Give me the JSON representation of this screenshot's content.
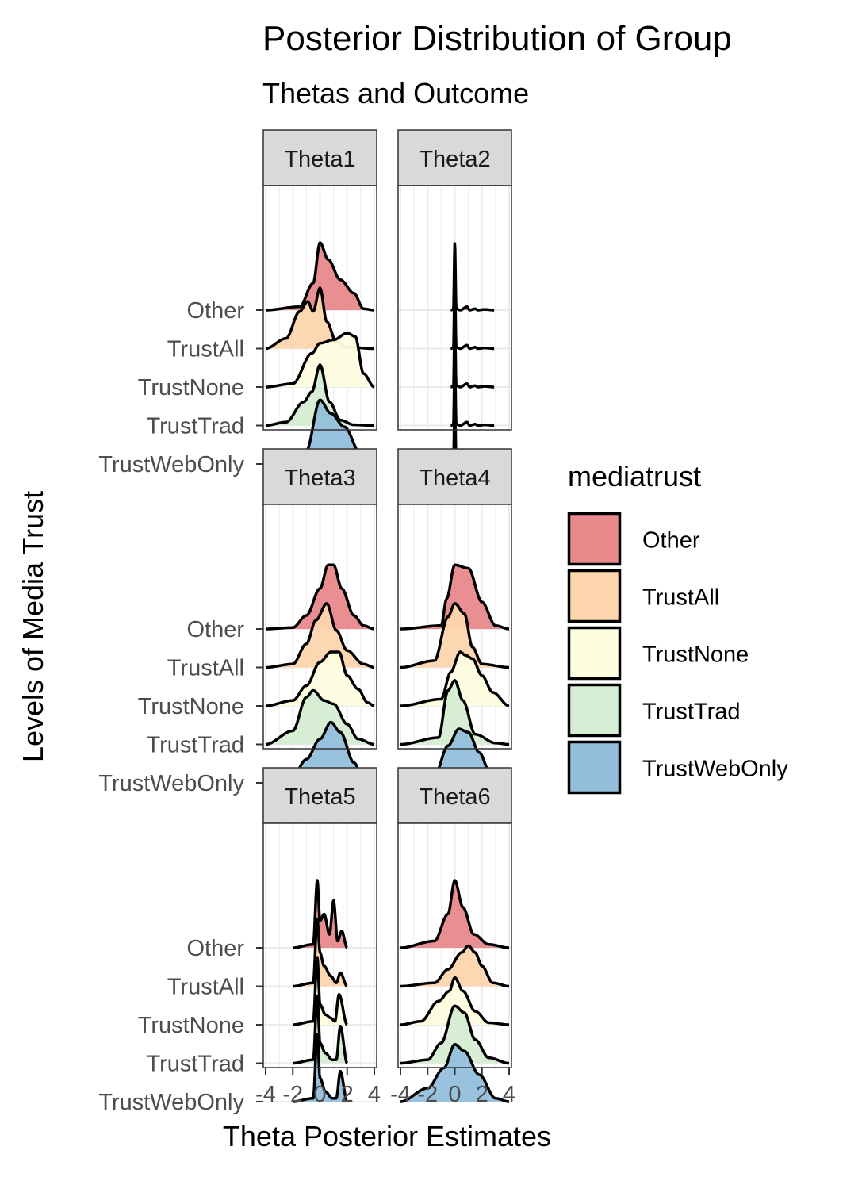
{
  "chart_data": {
    "type": "ridgeline",
    "title": "Posterior Distribution of Group",
    "subtitle": "Thetas and Outcome",
    "xlabel": "Theta Posterior Estimates",
    "ylabel": "Levels of Media Trust",
    "xlim": [
      -4,
      4
    ],
    "x_ticks": [
      -4,
      -2,
      0,
      2,
      4
    ],
    "x_tick_labels": [
      "-4",
      "-2",
      "0",
      "2",
      "4"
    ],
    "grid": true,
    "legend": {
      "title": "mediatrust",
      "placement": "right",
      "entries": [
        {
          "label": "Other",
          "color": "#e8898b"
        },
        {
          "label": "TrustAll",
          "color": "#fdd5ad"
        },
        {
          "label": "TrustNone",
          "color": "#fefde0"
        },
        {
          "label": "TrustTrad",
          "color": "#d5edd2"
        },
        {
          "label": "TrustWebOnly",
          "color": "#93bfdc"
        }
      ]
    },
    "categories": [
      "Other",
      "TrustAll",
      "TrustNone",
      "TrustTrad",
      "TrustWebOnly"
    ],
    "panels": [
      {
        "label": "Theta1",
        "series": [
          {
            "name": "Other",
            "x_range": [
              -4,
              4
            ],
            "x": [
              -4,
              -1.5,
              -0.5,
              0,
              0.6,
              1.5,
              2.5,
              3.2,
              4
            ],
            "density": [
              0,
              0.05,
              0.4,
              1.0,
              0.75,
              0.45,
              0.25,
              0.02,
              0
            ]
          },
          {
            "name": "TrustAll",
            "x_range": [
              -4,
              4
            ],
            "x": [
              -4,
              -2.5,
              -1.5,
              -0.9,
              -0.5,
              0,
              0.5,
              1.2,
              2,
              4
            ],
            "density": [
              0,
              0.15,
              0.55,
              0.7,
              0.55,
              0.9,
              0.4,
              0.1,
              0.02,
              0
            ]
          },
          {
            "name": "TrustNone",
            "x_range": [
              -4,
              4
            ],
            "x": [
              -4,
              -2,
              -0.6,
              0,
              1,
              2,
              2.6,
              3.2,
              4
            ],
            "density": [
              0,
              0.05,
              0.5,
              0.65,
              0.7,
              0.8,
              0.75,
              0.2,
              0
            ]
          },
          {
            "name": "TrustTrad",
            "x_range": [
              -4,
              4
            ],
            "x": [
              -4,
              -2.5,
              -1.2,
              -0.6,
              0,
              0.7,
              1.5,
              2.5,
              4
            ],
            "density": [
              0,
              0.05,
              0.35,
              0.5,
              0.9,
              0.35,
              0.08,
              0.01,
              0
            ]
          },
          {
            "name": "TrustWebOnly",
            "x_range": [
              -4,
              4
            ],
            "x": [
              -4,
              -2.5,
              -1,
              0,
              0.8,
              1.8,
              3,
              4
            ],
            "density": [
              0,
              0.02,
              0.2,
              0.95,
              0.75,
              0.55,
              0.15,
              0
            ]
          }
        ]
      },
      {
        "label": "Theta2",
        "series": [
          {
            "name": "Other",
            "x_range": [
              -0.3,
              2.9
            ],
            "x": [
              -0.3,
              -0.1,
              0,
              0.1,
              0.4,
              0.9,
              1.1,
              1.5,
              1.7,
              2.2,
              2.9
            ],
            "density": [
              0,
              0.01,
              1.0,
              0.02,
              0,
              0.05,
              0,
              0.02,
              0,
              0.01,
              0
            ]
          },
          {
            "name": "TrustAll",
            "x_range": [
              -0.3,
              2.9
            ],
            "x": [
              -0.3,
              -0.1,
              0,
              0.1,
              0.4,
              0.9,
              1.1,
              1.5,
              1.7,
              2.2,
              2.9
            ],
            "density": [
              0,
              0.01,
              1.0,
              0.02,
              0,
              0.05,
              0,
              0.02,
              0,
              0.01,
              0
            ]
          },
          {
            "name": "TrustNone",
            "x_range": [
              -0.3,
              2.9
            ],
            "x": [
              -0.3,
              -0.1,
              0,
              0.1,
              0.4,
              0.9,
              1.1,
              1.5,
              1.7,
              2.2,
              2.9
            ],
            "density": [
              0,
              0.01,
              1.0,
              0.02,
              0,
              0.05,
              0,
              0.02,
              0,
              0.01,
              0
            ]
          },
          {
            "name": "TrustTrad",
            "x_range": [
              -0.3,
              2.9
            ],
            "x": [
              -0.3,
              -0.1,
              0,
              0.1,
              0.4,
              0.9,
              1.1,
              1.5,
              1.7,
              2.2,
              2.9
            ],
            "density": [
              0,
              0.01,
              1.0,
              0.02,
              0,
              0.05,
              0,
              0.02,
              0,
              0.01,
              0
            ]
          },
          {
            "name": "TrustWebOnly",
            "x_range": [
              -0.3,
              2.9
            ],
            "x": [
              -0.3,
              -0.1,
              0,
              0.1,
              0.4,
              0.9,
              1.1,
              1.5,
              1.7,
              2.2,
              2.9
            ],
            "density": [
              0,
              0.01,
              1.0,
              0.02,
              0,
              0.05,
              0,
              0.02,
              0,
              0.01,
              0
            ]
          }
        ]
      },
      {
        "label": "Theta3",
        "series": [
          {
            "name": "Other",
            "x_range": [
              -4,
              4
            ],
            "x": [
              -4,
              -2,
              -1,
              0,
              0.6,
              1,
              1.6,
              2.5,
              3.2,
              4
            ],
            "density": [
              0,
              0.02,
              0.2,
              0.6,
              0.95,
              0.95,
              0.6,
              0.2,
              0.05,
              0
            ]
          },
          {
            "name": "TrustAll",
            "x_range": [
              -4,
              4
            ],
            "x": [
              -4,
              -2,
              -1,
              -0.3,
              0.5,
              1.2,
              2,
              3.2,
              4
            ],
            "density": [
              0,
              0.05,
              0.35,
              0.7,
              0.95,
              0.55,
              0.25,
              0.05,
              0
            ]
          },
          {
            "name": "TrustNone",
            "x_range": [
              -4,
              4
            ],
            "x": [
              -4,
              -2,
              -1,
              0,
              0.8,
              1.4,
              2,
              2.8,
              3.5,
              4
            ],
            "density": [
              0,
              0.08,
              0.3,
              0.65,
              0.8,
              0.8,
              0.45,
              0.25,
              0.05,
              0
            ]
          },
          {
            "name": "TrustTrad",
            "x_range": [
              -4,
              4
            ],
            "x": [
              -4,
              -2,
              -1,
              -0.5,
              0.3,
              1,
              2,
              2.8,
              4
            ],
            "density": [
              0,
              0.2,
              0.7,
              0.8,
              0.65,
              0.6,
              0.3,
              0.08,
              0
            ]
          },
          {
            "name": "TrustWebOnly",
            "x_range": [
              -4,
              4
            ],
            "x": [
              -4,
              -2,
              -1,
              0,
              0.8,
              1.5,
              2.5,
              3.2,
              4
            ],
            "density": [
              0,
              0.1,
              0.35,
              0.65,
              0.9,
              0.75,
              0.3,
              0.05,
              0
            ]
          }
        ]
      },
      {
        "label": "Theta4",
        "series": [
          {
            "name": "Other",
            "x_range": [
              -4,
              4
            ],
            "x": [
              -4,
              -1,
              -0.6,
              0,
              1,
              2,
              3,
              4
            ],
            "density": [
              0,
              0.05,
              0.45,
              0.95,
              0.9,
              0.4,
              0.05,
              0
            ]
          },
          {
            "name": "TrustAll",
            "x_range": [
              -4,
              4
            ],
            "x": [
              -4,
              -1.5,
              -0.5,
              0,
              0.7,
              1.3,
              2,
              4
            ],
            "density": [
              0,
              0.1,
              0.75,
              0.95,
              0.8,
              0.3,
              0.05,
              0
            ]
          },
          {
            "name": "TrustNone",
            "x_range": [
              -4,
              4
            ],
            "x": [
              -4,
              -1,
              -0.3,
              0.4,
              0.8,
              1.3,
              2,
              2.8,
              4
            ],
            "density": [
              0,
              0.1,
              0.5,
              0.8,
              0.75,
              0.7,
              0.45,
              0.2,
              0
            ]
          },
          {
            "name": "TrustTrad",
            "x_range": [
              -4,
              4
            ],
            "x": [
              -4,
              -1.2,
              -0.5,
              0,
              0.6,
              1.5,
              3,
              4
            ],
            "density": [
              0,
              0.1,
              0.8,
              0.95,
              0.65,
              0.15,
              0.02,
              0
            ]
          },
          {
            "name": "TrustWebOnly",
            "x_range": [
              -4,
              4
            ],
            "x": [
              -4,
              -1.5,
              -0.5,
              0.3,
              1,
              1.8,
              2.6,
              4
            ],
            "density": [
              0,
              0.1,
              0.55,
              0.8,
              0.75,
              0.45,
              0.15,
              0
            ]
          }
        ]
      },
      {
        "label": "Theta5",
        "series": [
          {
            "name": "Other",
            "x_range": [
              -2,
              2
            ],
            "x": [
              -2,
              -0.5,
              -0.2,
              0,
              0.3,
              0.7,
              1.0,
              1.3,
              1.6,
              2
            ],
            "density": [
              0,
              0.05,
              1.0,
              0.4,
              0.5,
              0.2,
              0.7,
              0.1,
              0.25,
              0
            ]
          },
          {
            "name": "TrustAll",
            "x_range": [
              -2,
              2
            ],
            "x": [
              -2,
              -0.5,
              -0.2,
              0,
              0.3,
              0.8,
              1.2,
              1.5,
              2
            ],
            "density": [
              0,
              0.05,
              1.0,
              0.5,
              0.3,
              0.15,
              0.05,
              0.2,
              0
            ]
          },
          {
            "name": "TrustNone",
            "x_range": [
              -2,
              2
            ],
            "x": [
              -2,
              -0.5,
              -0.2,
              0,
              0.4,
              0.8,
              1.1,
              1.4,
              2
            ],
            "density": [
              0,
              0.05,
              1.0,
              0.3,
              0.15,
              0.1,
              0.05,
              0.45,
              0
            ]
          },
          {
            "name": "TrustTrad",
            "x_range": [
              -2,
              2
            ],
            "x": [
              -2,
              -0.5,
              -0.2,
              0,
              0.4,
              0.9,
              1.2,
              1.5,
              2
            ],
            "density": [
              0,
              0.05,
              1.0,
              0.3,
              0.15,
              0.05,
              0.05,
              0.55,
              0
            ]
          },
          {
            "name": "TrustWebOnly",
            "x_range": [
              -2,
              2
            ],
            "x": [
              -2,
              -0.5,
              -0.2,
              0,
              0.4,
              0.9,
              1.2,
              1.5,
              2
            ],
            "density": [
              0,
              0.05,
              1.0,
              0.35,
              0.15,
              0.05,
              0.05,
              0.45,
              0
            ]
          }
        ]
      },
      {
        "label": "Theta6",
        "series": [
          {
            "name": "Other",
            "x_range": [
              -4,
              4
            ],
            "x": [
              -4,
              -1.5,
              -0.5,
              0,
              0.6,
              1.4,
              2.5,
              4
            ],
            "density": [
              0,
              0.1,
              0.5,
              1.0,
              0.6,
              0.2,
              0.05,
              0
            ]
          },
          {
            "name": "TrustAll",
            "x_range": [
              -4,
              4
            ],
            "x": [
              -4,
              -1.5,
              -0.5,
              0.5,
              1,
              1.5,
              2,
              2.8,
              4
            ],
            "density": [
              0,
              0.05,
              0.25,
              0.5,
              0.6,
              0.5,
              0.3,
              0.05,
              0
            ]
          },
          {
            "name": "TrustNone",
            "x_range": [
              -4,
              4
            ],
            "x": [
              -4,
              -2.5,
              -1.2,
              -0.4,
              0,
              0.6,
              1.5,
              2.5,
              4
            ],
            "density": [
              0,
              0.05,
              0.35,
              0.5,
              0.7,
              0.5,
              0.2,
              0.03,
              0
            ]
          },
          {
            "name": "TrustTrad",
            "x_range": [
              -4,
              4
            ],
            "x": [
              -4,
              -2,
              -1,
              0,
              0.7,
              1.5,
              2.5,
              4
            ],
            "density": [
              0,
              0.05,
              0.3,
              0.85,
              0.75,
              0.35,
              0.08,
              0
            ]
          },
          {
            "name": "TrustWebOnly",
            "x_range": [
              -4,
              4
            ],
            "x": [
              -4,
              -2,
              -0.8,
              0,
              0.7,
              1.8,
              3,
              4
            ],
            "density": [
              0,
              0.2,
              0.5,
              0.85,
              0.75,
              0.4,
              0.05,
              0
            ]
          }
        ]
      }
    ]
  }
}
